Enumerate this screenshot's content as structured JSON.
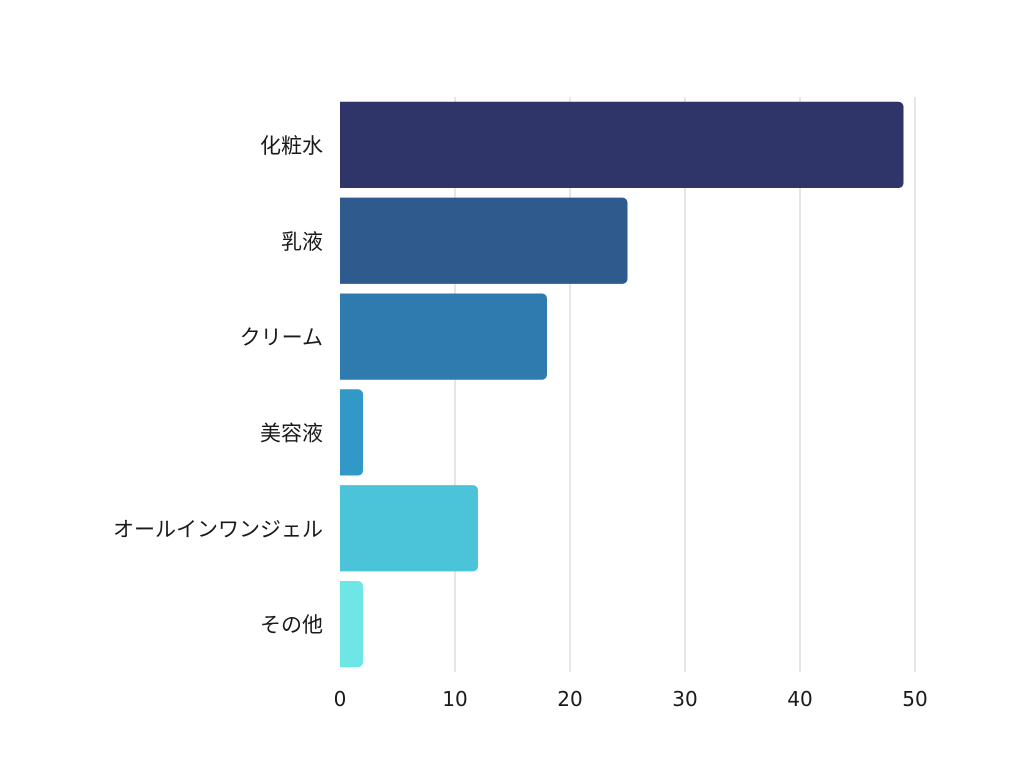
{
  "chart_data": {
    "type": "bar",
    "orientation": "horizontal",
    "categories": [
      "化粧水",
      "乳液",
      "クリーム",
      "美容液",
      "オールインワンジェル",
      "その他"
    ],
    "values": [
      49,
      25,
      18,
      2,
      12,
      2
    ],
    "colors": [
      "#2f3569",
      "#2e5a8e",
      "#2f7baf",
      "#3198c8",
      "#4bc4da",
      "#6ee6e6"
    ],
    "xlim": [
      0,
      50
    ],
    "xticks": [
      0,
      10,
      20,
      30,
      40,
      50
    ],
    "grid": "vertical",
    "gridColor": "#cccccc",
    "title": "",
    "xlabel": "",
    "ylabel": ""
  }
}
